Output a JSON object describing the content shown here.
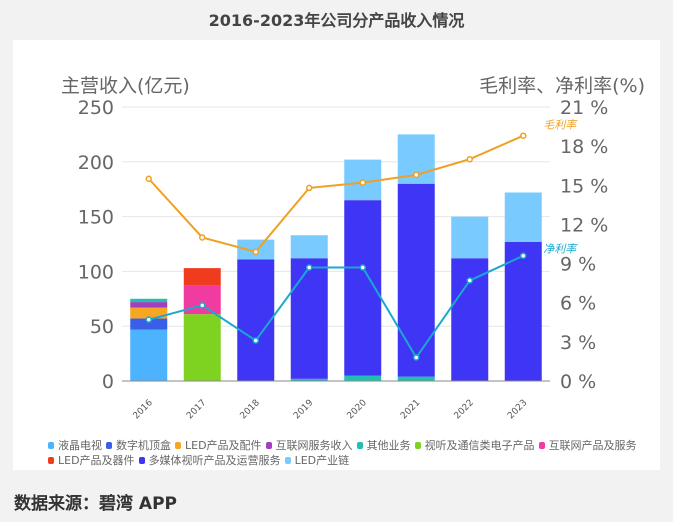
{
  "chart_data": {
    "type": "bar",
    "title": "2016-2023年公司分产品收入情况",
    "ylabel": "主营收入(亿元)",
    "y2label": "毛利率、净利率(%)",
    "ylim": [
      0,
      250
    ],
    "y2lim": [
      0,
      21
    ],
    "yticks": [
      "0",
      "50",
      "100",
      "150",
      "200",
      "250"
    ],
    "y2ticks": [
      "0 %",
      "3 %",
      "6 %",
      "9 %",
      "12 %",
      "15 %",
      "18 %",
      "21 %"
    ],
    "categories": [
      "2016",
      "2017",
      "2018",
      "2019",
      "2020",
      "2021",
      "2022",
      "2023"
    ],
    "series": [
      {
        "name": "液晶电视",
        "color": "#4db3ff",
        "values": [
          47,
          0,
          0,
          0,
          0,
          0,
          0,
          0
        ]
      },
      {
        "name": "数字机顶盒",
        "color": "#3a5ee8",
        "values": [
          10,
          0,
          0,
          0,
          0,
          0,
          0,
          0
        ]
      },
      {
        "name": "LED产品及配件",
        "color": "#f5a623",
        "values": [
          10,
          0,
          0,
          0,
          0,
          0,
          0,
          0
        ]
      },
      {
        "name": "互联网服务收入",
        "color": "#a040c0",
        "values": [
          5,
          0,
          0,
          0,
          0,
          0,
          0,
          0
        ]
      },
      {
        "name": "其他业务",
        "color": "#20c0b0",
        "values": [
          3,
          0,
          0,
          2,
          5,
          4,
          0,
          0
        ]
      },
      {
        "name": "视听及通信类电子产品",
        "color": "#7ed321",
        "values": [
          0,
          61,
          0,
          0,
          0,
          0,
          0,
          0
        ]
      },
      {
        "name": "互联网产品及服务",
        "color": "#f03ca0",
        "values": [
          0,
          26,
          0,
          0,
          0,
          0,
          0,
          0
        ]
      },
      {
        "name": "LED产品及器件",
        "color": "#f03c1e",
        "values": [
          0,
          16,
          0,
          0,
          0,
          0,
          0,
          0
        ]
      },
      {
        "name": "多媒体视听产品及运营服务",
        "color": "#3f35f5",
        "values": [
          0,
          0,
          111,
          110,
          160,
          176,
          112,
          127
        ]
      },
      {
        "name": "LED产业链",
        "color": "#79cbff",
        "values": [
          0,
          0,
          18,
          21,
          37,
          45,
          38,
          45
        ]
      }
    ],
    "lines": [
      {
        "name": "毛利率",
        "color": "#f0a020",
        "values": [
          15.5,
          11.0,
          9.9,
          14.8,
          15.2,
          15.8,
          17.0,
          18.8
        ]
      },
      {
        "name": "净利率",
        "color": "#1aa8d0",
        "values": [
          4.7,
          5.8,
          3.1,
          8.7,
          8.7,
          1.8,
          7.7,
          9.6
        ]
      }
    ]
  },
  "source": "数据来源：碧湾 APP"
}
